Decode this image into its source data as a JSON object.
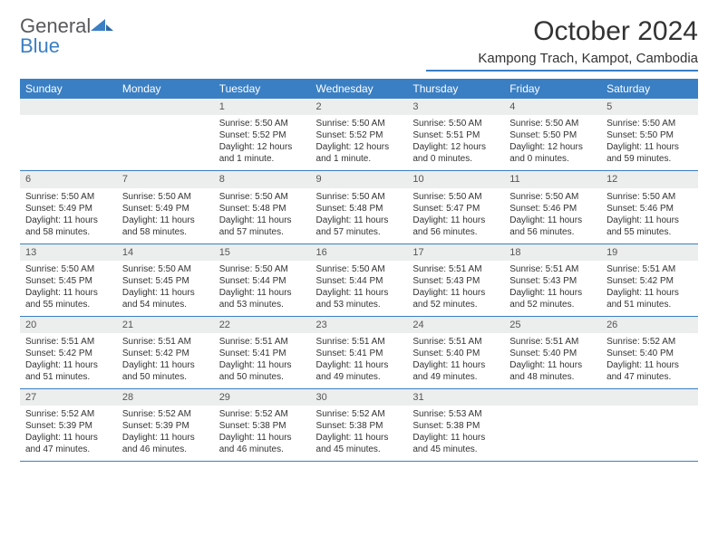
{
  "brand": {
    "word1": "General",
    "word2": "Blue"
  },
  "title": "October 2024",
  "location": "Kampong Trach, Kampot, Cambodia",
  "colors": {
    "accent": "#3a7fc4",
    "header_bg": "#3a7fc4",
    "daynum_bg": "#eceded",
    "text": "#333333",
    "page_bg": "#ffffff"
  },
  "typography": {
    "title_fontsize": 30,
    "location_fontsize": 15,
    "dayhead_fontsize": 12,
    "body_fontsize": 10
  },
  "calendar": {
    "type": "table",
    "columns": [
      "Sunday",
      "Monday",
      "Tuesday",
      "Wednesday",
      "Thursday",
      "Friday",
      "Saturday"
    ],
    "first_weekday_index": 2,
    "days": [
      {
        "n": 1,
        "sunrise": "5:50 AM",
        "sunset": "5:52 PM",
        "daylight": "12 hours and 1 minute."
      },
      {
        "n": 2,
        "sunrise": "5:50 AM",
        "sunset": "5:52 PM",
        "daylight": "12 hours and 1 minute."
      },
      {
        "n": 3,
        "sunrise": "5:50 AM",
        "sunset": "5:51 PM",
        "daylight": "12 hours and 0 minutes."
      },
      {
        "n": 4,
        "sunrise": "5:50 AM",
        "sunset": "5:50 PM",
        "daylight": "12 hours and 0 minutes."
      },
      {
        "n": 5,
        "sunrise": "5:50 AM",
        "sunset": "5:50 PM",
        "daylight": "11 hours and 59 minutes."
      },
      {
        "n": 6,
        "sunrise": "5:50 AM",
        "sunset": "5:49 PM",
        "daylight": "11 hours and 58 minutes."
      },
      {
        "n": 7,
        "sunrise": "5:50 AM",
        "sunset": "5:49 PM",
        "daylight": "11 hours and 58 minutes."
      },
      {
        "n": 8,
        "sunrise": "5:50 AM",
        "sunset": "5:48 PM",
        "daylight": "11 hours and 57 minutes."
      },
      {
        "n": 9,
        "sunrise": "5:50 AM",
        "sunset": "5:48 PM",
        "daylight": "11 hours and 57 minutes."
      },
      {
        "n": 10,
        "sunrise": "5:50 AM",
        "sunset": "5:47 PM",
        "daylight": "11 hours and 56 minutes."
      },
      {
        "n": 11,
        "sunrise": "5:50 AM",
        "sunset": "5:46 PM",
        "daylight": "11 hours and 56 minutes."
      },
      {
        "n": 12,
        "sunrise": "5:50 AM",
        "sunset": "5:46 PM",
        "daylight": "11 hours and 55 minutes."
      },
      {
        "n": 13,
        "sunrise": "5:50 AM",
        "sunset": "5:45 PM",
        "daylight": "11 hours and 55 minutes."
      },
      {
        "n": 14,
        "sunrise": "5:50 AM",
        "sunset": "5:45 PM",
        "daylight": "11 hours and 54 minutes."
      },
      {
        "n": 15,
        "sunrise": "5:50 AM",
        "sunset": "5:44 PM",
        "daylight": "11 hours and 53 minutes."
      },
      {
        "n": 16,
        "sunrise": "5:50 AM",
        "sunset": "5:44 PM",
        "daylight": "11 hours and 53 minutes."
      },
      {
        "n": 17,
        "sunrise": "5:51 AM",
        "sunset": "5:43 PM",
        "daylight": "11 hours and 52 minutes."
      },
      {
        "n": 18,
        "sunrise": "5:51 AM",
        "sunset": "5:43 PM",
        "daylight": "11 hours and 52 minutes."
      },
      {
        "n": 19,
        "sunrise": "5:51 AM",
        "sunset": "5:42 PM",
        "daylight": "11 hours and 51 minutes."
      },
      {
        "n": 20,
        "sunrise": "5:51 AM",
        "sunset": "5:42 PM",
        "daylight": "11 hours and 51 minutes."
      },
      {
        "n": 21,
        "sunrise": "5:51 AM",
        "sunset": "5:42 PM",
        "daylight": "11 hours and 50 minutes."
      },
      {
        "n": 22,
        "sunrise": "5:51 AM",
        "sunset": "5:41 PM",
        "daylight": "11 hours and 50 minutes."
      },
      {
        "n": 23,
        "sunrise": "5:51 AM",
        "sunset": "5:41 PM",
        "daylight": "11 hours and 49 minutes."
      },
      {
        "n": 24,
        "sunrise": "5:51 AM",
        "sunset": "5:40 PM",
        "daylight": "11 hours and 49 minutes."
      },
      {
        "n": 25,
        "sunrise": "5:51 AM",
        "sunset": "5:40 PM",
        "daylight": "11 hours and 48 minutes."
      },
      {
        "n": 26,
        "sunrise": "5:52 AM",
        "sunset": "5:40 PM",
        "daylight": "11 hours and 47 minutes."
      },
      {
        "n": 27,
        "sunrise": "5:52 AM",
        "sunset": "5:39 PM",
        "daylight": "11 hours and 47 minutes."
      },
      {
        "n": 28,
        "sunrise": "5:52 AM",
        "sunset": "5:39 PM",
        "daylight": "11 hours and 46 minutes."
      },
      {
        "n": 29,
        "sunrise": "5:52 AM",
        "sunset": "5:38 PM",
        "daylight": "11 hours and 46 minutes."
      },
      {
        "n": 30,
        "sunrise": "5:52 AM",
        "sunset": "5:38 PM",
        "daylight": "11 hours and 45 minutes."
      },
      {
        "n": 31,
        "sunrise": "5:53 AM",
        "sunset": "5:38 PM",
        "daylight": "11 hours and 45 minutes."
      }
    ],
    "labels": {
      "sunrise_prefix": "Sunrise: ",
      "sunset_prefix": "Sunset: ",
      "daylight_prefix": "Daylight: "
    }
  }
}
